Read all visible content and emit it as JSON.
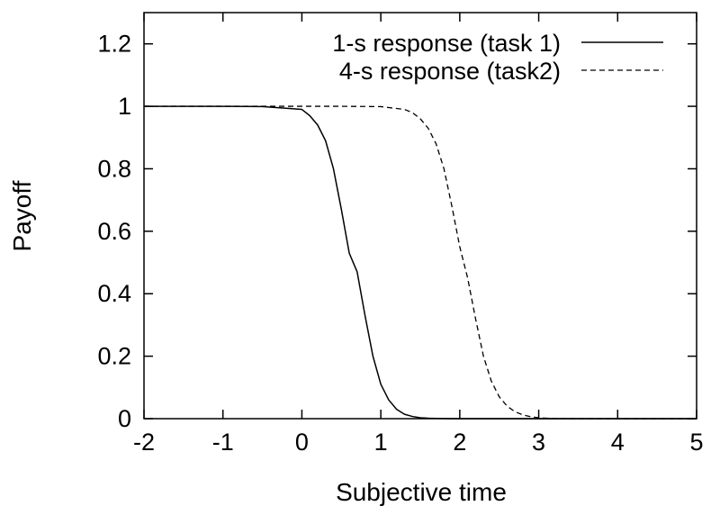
{
  "chart_data": {
    "type": "line",
    "title": "",
    "xlabel": "Subjective time",
    "ylabel": "Payoff",
    "xlim": [
      -2,
      5
    ],
    "ylim": [
      0,
      1.3
    ],
    "xticks": [
      -2,
      -1,
      0,
      1,
      2,
      3,
      4,
      5
    ],
    "yticks": [
      0,
      0.2,
      0.4,
      0.6,
      0.8,
      1,
      1.2
    ],
    "xtick_labels": [
      "-2",
      "-1",
      "0",
      "1",
      "2",
      "3",
      "4",
      "5"
    ],
    "ytick_labels": [
      "0",
      "0.2",
      "0.4",
      "0.6",
      "0.8",
      "1",
      "1.2"
    ],
    "grid": false,
    "legend_position": "top-right",
    "series": [
      {
        "name": "1-s response (task 1)",
        "style": "solid",
        "color": "#000000",
        "x": [
          -2,
          -1,
          -0.5,
          0,
          0.1,
          0.2,
          0.3,
          0.4,
          0.5,
          0.6,
          0.65,
          0.7,
          0.8,
          0.9,
          1.0,
          1.1,
          1.2,
          1.3,
          1.4,
          1.5,
          1.6,
          1.7,
          1.8,
          2.0,
          2.5,
          3,
          4,
          5
        ],
        "y": [
          1.0,
          1.0,
          0.999,
          0.99,
          0.97,
          0.94,
          0.89,
          0.8,
          0.67,
          0.53,
          0.5,
          0.47,
          0.33,
          0.2,
          0.11,
          0.06,
          0.03,
          0.014,
          0.007,
          0.003,
          0.0015,
          0.0007,
          0.0003,
          0.0,
          0.0,
          0.0,
          0.0,
          0.0
        ]
      },
      {
        "name": "4-s response (task2)",
        "style": "dashed",
        "color": "#000000",
        "x": [
          -2,
          -1,
          0,
          0.5,
          1.0,
          1.3,
          1.4,
          1.5,
          1.6,
          1.7,
          1.8,
          1.9,
          2.0,
          2.05,
          2.1,
          2.2,
          2.3,
          2.4,
          2.5,
          2.6,
          2.7,
          2.8,
          2.9,
          3.0,
          3.1,
          3.2,
          3.4,
          4,
          5
        ],
        "y": [
          1.0,
          1.0,
          1.0,
          1.0,
          0.999,
          0.99,
          0.98,
          0.96,
          0.93,
          0.88,
          0.8,
          0.68,
          0.55,
          0.5,
          0.45,
          0.32,
          0.2,
          0.12,
          0.07,
          0.04,
          0.022,
          0.012,
          0.006,
          0.003,
          0.0015,
          0.0008,
          0.0002,
          0.0,
          0.0
        ]
      }
    ]
  }
}
